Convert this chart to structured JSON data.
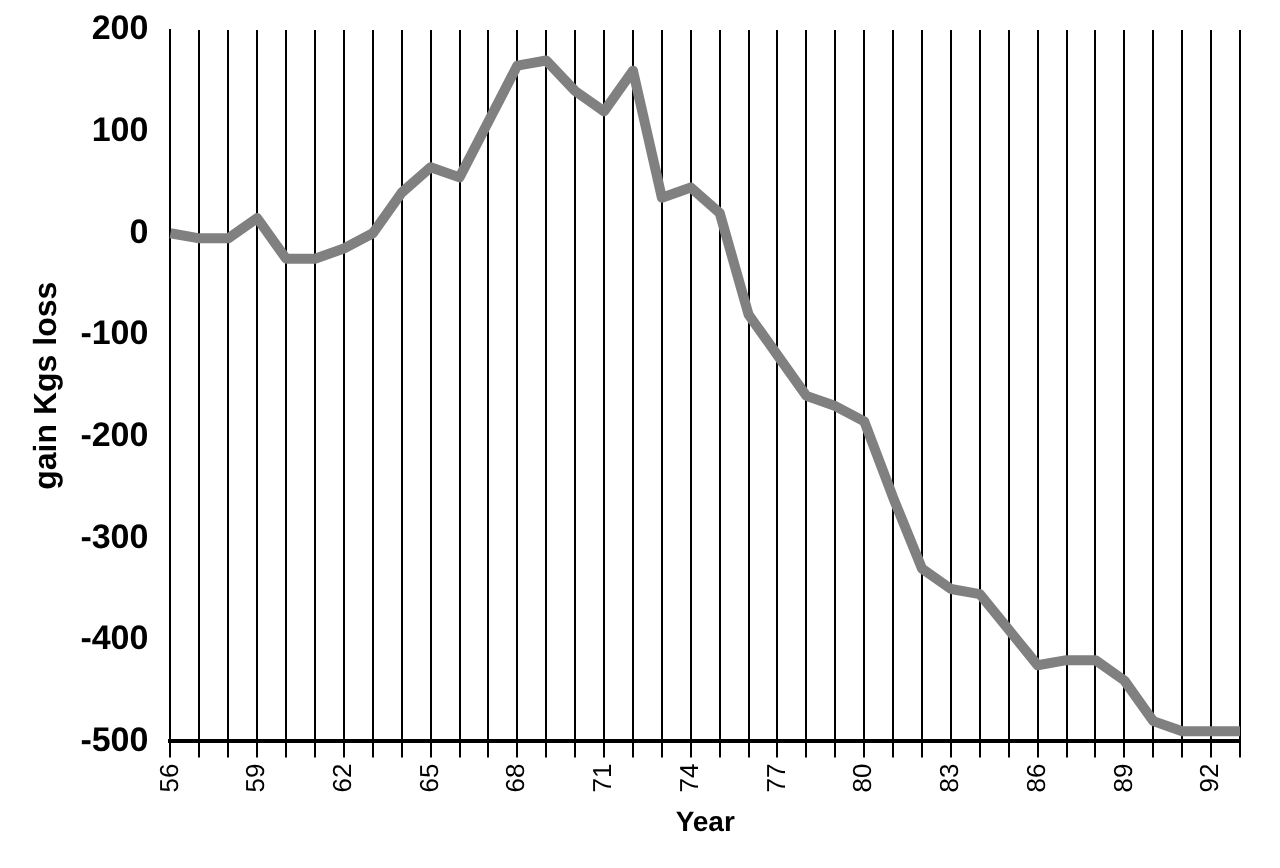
{
  "chart_data": {
    "type": "line",
    "xlabel": "Year",
    "ylabel": "gain Kgs loss",
    "categories": [
      "56",
      null,
      null,
      "59",
      null,
      null,
      "62",
      null,
      null,
      "65",
      null,
      null,
      "68",
      null,
      null,
      "71",
      null,
      null,
      "74",
      null,
      null,
      "77",
      null,
      null,
      "80",
      null,
      null,
      "83",
      null,
      null,
      "86",
      null,
      null,
      "89",
      null,
      null,
      "92",
      null
    ],
    "series": [
      {
        "color": "#808080",
        "values": [
          0,
          -5,
          -5,
          15,
          -25,
          -25,
          -15,
          0,
          40,
          65,
          55,
          110,
          165,
          170,
          140,
          120,
          160,
          35,
          45,
          20,
          -80,
          -120,
          -160,
          -170,
          -185,
          -260,
          -330,
          -350,
          -355,
          -390,
          -425,
          -420,
          -420,
          -440,
          -480,
          -490,
          -490,
          -490
        ]
      }
    ],
    "ylim": [
      -500,
      200
    ],
    "yticks": [
      -500,
      -400,
      -300,
      -200,
      -100,
      0,
      100,
      200
    ],
    "grid": "x",
    "legend": false,
    "marker": "none",
    "line_style": "solid"
  }
}
